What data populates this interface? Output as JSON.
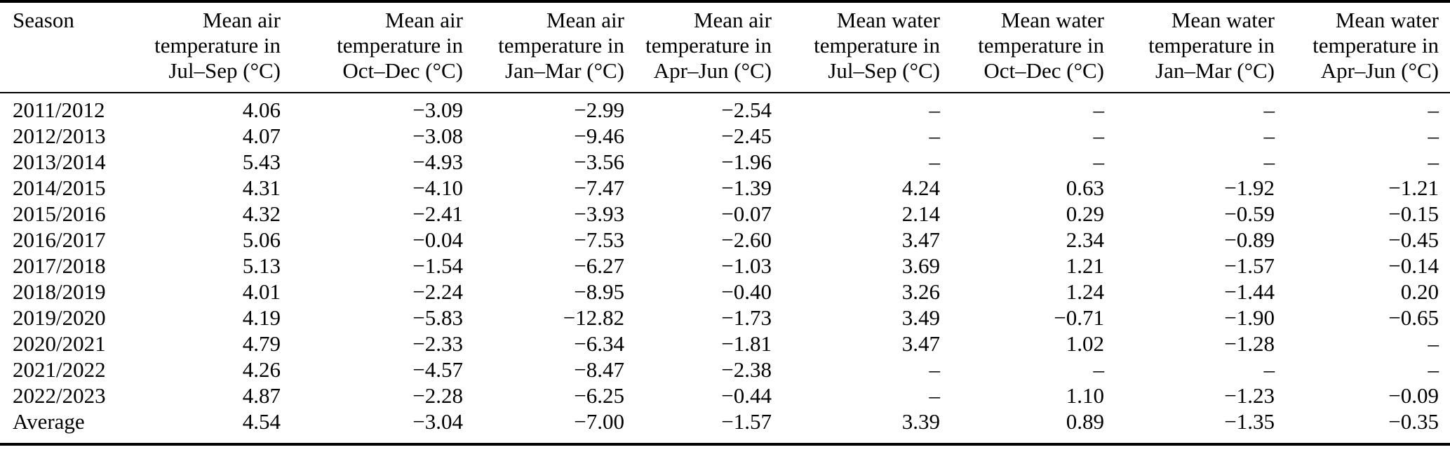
{
  "table": {
    "header": {
      "season_label": "Season",
      "columns": [
        {
          "id": "air-jul-sep",
          "label": "Mean air temperature in Jul–Sep (°C)",
          "lines": [
            "Mean air",
            "temperature in",
            "Jul–Sep (°C)"
          ]
        },
        {
          "id": "air-oct-dec",
          "label": "Mean air temperature in Oct–Dec (°C)",
          "lines": [
            "Mean air",
            "temperature in",
            "Oct–Dec (°C)"
          ]
        },
        {
          "id": "air-jan-mar",
          "label": "Mean air temperature in Jan–Mar (°C)",
          "lines": [
            "Mean air",
            "temperature in",
            "Jan–Mar (°C)"
          ]
        },
        {
          "id": "air-apr-jun",
          "label": "Mean air temperature in Apr–Jun (°C)",
          "lines": [
            "Mean air",
            "temperature in",
            "Apr–Jun (°C)"
          ]
        },
        {
          "id": "water-jul-sep",
          "label": "Mean water temperature in Jul–Sep (°C)",
          "lines": [
            "Mean water",
            "temperature in",
            "Jul–Sep (°C)"
          ]
        },
        {
          "id": "water-oct-dec",
          "label": "Mean water temperature in Oct–Dec (°C)",
          "lines": [
            "Mean water",
            "temperature in",
            "Oct–Dec (°C)"
          ]
        },
        {
          "id": "water-jan-mar",
          "label": "Mean water temperature in Jan–Mar (°C)",
          "lines": [
            "Mean water",
            "temperature in",
            "Jan–Mar (°C)"
          ]
        },
        {
          "id": "water-apr-jun",
          "label": "Mean water temperature in Apr–Jun (°C)",
          "lines": [
            "Mean water",
            "temperature in",
            "Apr–Jun (°C)"
          ]
        }
      ]
    },
    "missing_value_symbol": "–",
    "rows": [
      {
        "season": "2011/2012",
        "values": [
          "4.06",
          "−3.09",
          "−2.99",
          "−2.54",
          "–",
          "–",
          "–",
          "–"
        ]
      },
      {
        "season": "2012/2013",
        "values": [
          "4.07",
          "−3.08",
          "−9.46",
          "−2.45",
          "–",
          "–",
          "–",
          "–"
        ]
      },
      {
        "season": "2013/2014",
        "values": [
          "5.43",
          "−4.93",
          "−3.56",
          "−1.96",
          "–",
          "–",
          "–",
          "–"
        ]
      },
      {
        "season": "2014/2015",
        "values": [
          "4.31",
          "−4.10",
          "−7.47",
          "−1.39",
          "4.24",
          "0.63",
          "−1.92",
          "−1.21"
        ]
      },
      {
        "season": "2015/2016",
        "values": [
          "4.32",
          "−2.41",
          "−3.93",
          "−0.07",
          "2.14",
          "0.29",
          "−0.59",
          "−0.15"
        ]
      },
      {
        "season": "2016/2017",
        "values": [
          "5.06",
          "−0.04",
          "−7.53",
          "−2.60",
          "3.47",
          "2.34",
          "−0.89",
          "−0.45"
        ]
      },
      {
        "season": "2017/2018",
        "values": [
          "5.13",
          "−1.54",
          "−6.27",
          "−1.03",
          "3.69",
          "1.21",
          "−1.57",
          "−0.14"
        ]
      },
      {
        "season": "2018/2019",
        "values": [
          "4.01",
          "−2.24",
          "−8.95",
          "−0.40",
          "3.26",
          "1.24",
          "−1.44",
          "0.20"
        ]
      },
      {
        "season": "2019/2020",
        "values": [
          "4.19",
          "−5.83",
          "−12.82",
          "−1.73",
          "3.49",
          "−0.71",
          "−1.90",
          "−0.65"
        ]
      },
      {
        "season": "2020/2021",
        "values": [
          "4.79",
          "−2.33",
          "−6.34",
          "−1.81",
          "3.47",
          "1.02",
          "−1.28",
          "–"
        ]
      },
      {
        "season": "2021/2022",
        "values": [
          "4.26",
          "−4.57",
          "−8.47",
          "−2.38",
          "–",
          "–",
          "–",
          "–"
        ]
      },
      {
        "season": "2022/2023",
        "values": [
          "4.87",
          "−2.28",
          "−6.25",
          "−0.44",
          "–",
          "1.10",
          "−1.23",
          "−0.09"
        ]
      },
      {
        "season": "Average",
        "values": [
          "4.54",
          "−3.04",
          "−7.00",
          "−1.57",
          "3.39",
          "0.89",
          "−1.35",
          "−0.35"
        ]
      }
    ]
  },
  "colors": {
    "text": "#000000",
    "background": "#ffffff",
    "rule": "#000000"
  }
}
